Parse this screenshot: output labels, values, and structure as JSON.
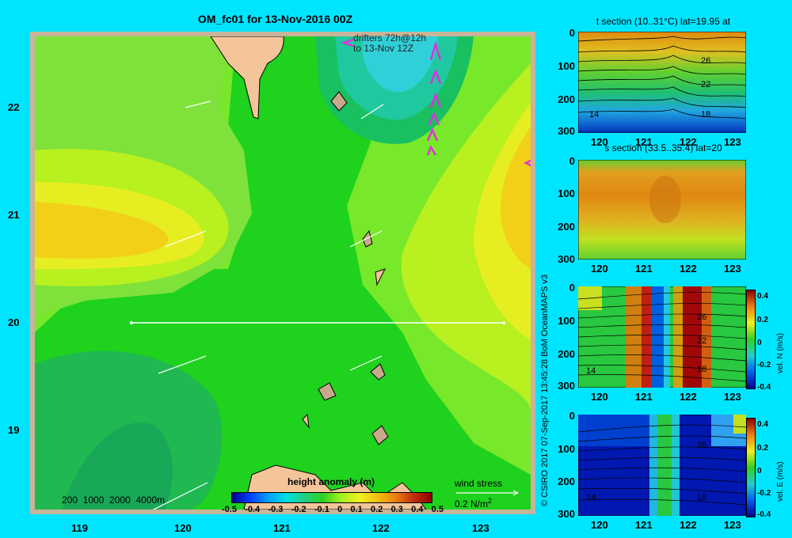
{
  "main_map": {
    "title": "OM_fc01 for 13-Nov-2016 00Z",
    "drifters_line1": "drifters 72h@12h",
    "drifters_line2": "to 13-Nov 12Z",
    "lon_ticks": [
      "119",
      "120",
      "121",
      "122",
      "123"
    ],
    "lat_ticks": [
      "22",
      "21",
      "20",
      "19"
    ],
    "depth_legend": [
      "200",
      "1000",
      "2000",
      "4000m"
    ],
    "colorbar_title": "height anomaly (m)",
    "colorbar_ticks": [
      "-0.5",
      "-0.4",
      "-0.3",
      "-0.2",
      "-0.1",
      "0",
      "0.1",
      "0.2",
      "0.3",
      "0.4",
      "0.5"
    ],
    "wind_stress_label": "wind stress",
    "wind_stress_scale": "0.2 N/m",
    "wind_stress_exp": "2"
  },
  "credit": "© CSIRO 2017   07-Sep-2017 13:45:28 BoM OceanMAPS v3",
  "panels": [
    {
      "title": "t section (10..31°C) lat=19.95 at",
      "depth_ticks": [
        "0",
        "100",
        "200",
        "300"
      ],
      "lon_ticks": [
        "120",
        "121",
        "122",
        "123"
      ],
      "contour_labels": [
        "26",
        "22",
        "18",
        "14"
      ]
    },
    {
      "title": "s section (33.5..35.4) lat=20",
      "depth_ticks": [
        "0",
        "100",
        "200",
        "300"
      ],
      "lon_ticks": [
        "120",
        "121",
        "122",
        "123"
      ]
    },
    {
      "depth_ticks": [
        "0",
        "100",
        "200",
        "300"
      ],
      "lon_ticks": [
        "120",
        "121",
        "122",
        "123"
      ],
      "contour_labels": [
        "26",
        "22",
        "18",
        "14"
      ],
      "cbar_ticks": [
        "0.4",
        "0.2",
        "0",
        "-0.2",
        "-0.4"
      ],
      "cbar_label": "vel. N (m/s)"
    },
    {
      "depth_ticks": [
        "0",
        "100",
        "200",
        "300"
      ],
      "lon_ticks": [
        "120",
        "121",
        "122",
        "123"
      ],
      "contour_labels": [
        "26",
        "18",
        "14"
      ],
      "cbar_ticks": [
        "0.4",
        "0.2",
        "0",
        "-0.2",
        "-0.4"
      ],
      "cbar_label": "vel. E (m/s)"
    }
  ],
  "colors": {
    "background": "#00e5ff",
    "land": "#f5c59a",
    "drifter": "#e030e0"
  }
}
